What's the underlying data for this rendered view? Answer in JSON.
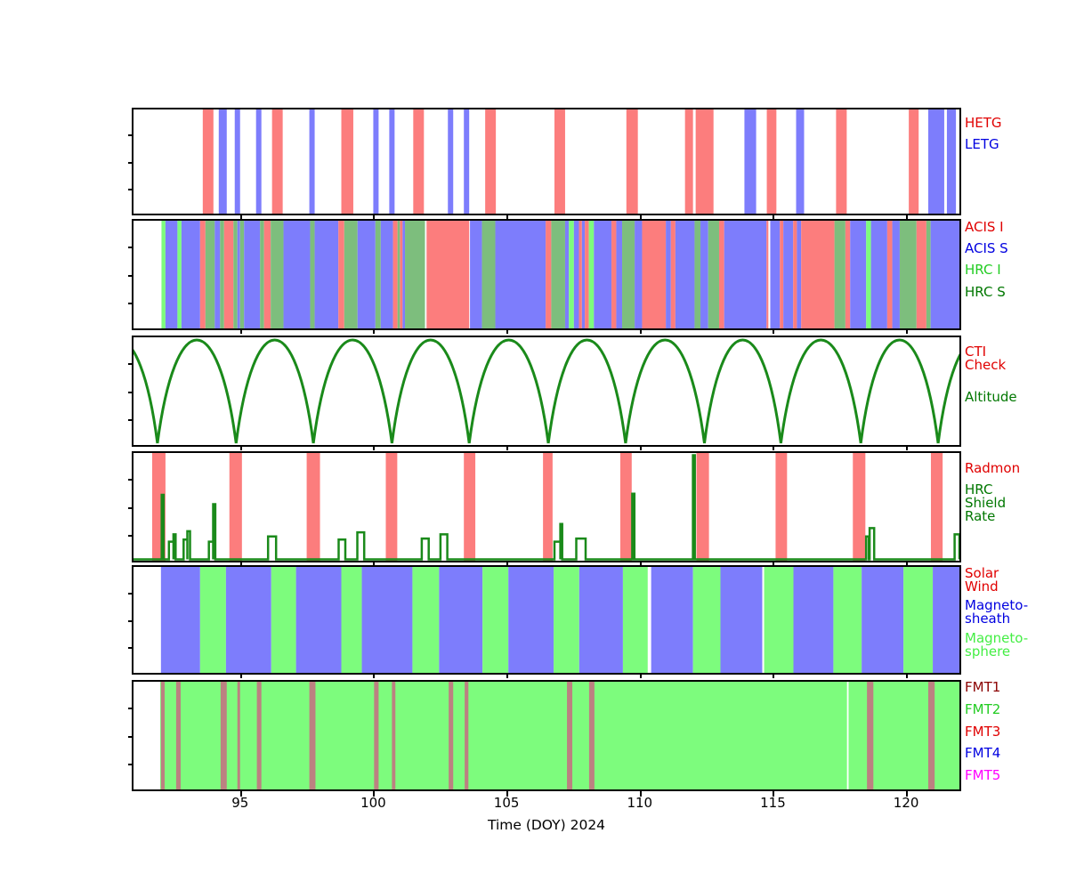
{
  "chart_data": {
    "type": "area",
    "title": "",
    "xlabel": "Time (DOY) 2024",
    "axis": {
      "title": "Time (DOY) 2024",
      "xmin": 91.0,
      "xmax": 122.0,
      "xtick_values": [
        95,
        100,
        105,
        110,
        115,
        120
      ],
      "xtick_labels": [
        "95",
        "100",
        "105",
        "110",
        "115",
        "120"
      ]
    },
    "palette": {
      "salmon": "#fc7d7d",
      "blue": "#7d7dfc",
      "lime": "#7dfc7d",
      "mutedgreen": "#7dbe7d",
      "curvegreen": "#1a8a1a",
      "rosy": "#bc8181",
      "white": "#ffffff"
    },
    "panels": [
      {
        "name": "gratings",
        "type": "intervals",
        "series": [
          {
            "label": "HETG",
            "color": "#e00000"
          },
          {
            "label": "LETG",
            "color": "#0000e0"
          }
        ],
        "segments": [
          [
            93.6,
            94.0,
            "salmon"
          ],
          [
            94.2,
            94.5,
            "blue"
          ],
          [
            94.8,
            95.0,
            "blue"
          ],
          [
            95.6,
            95.8,
            "blue"
          ],
          [
            96.2,
            96.6,
            "salmon"
          ],
          [
            97.6,
            97.8,
            "blue"
          ],
          [
            98.8,
            99.25,
            "salmon"
          ],
          [
            100.0,
            100.2,
            "blue"
          ],
          [
            100.6,
            100.8,
            "blue"
          ],
          [
            101.5,
            101.9,
            "salmon"
          ],
          [
            102.8,
            103.0,
            "blue"
          ],
          [
            103.4,
            103.6,
            "blue"
          ],
          [
            104.2,
            104.6,
            "salmon"
          ],
          [
            106.8,
            107.2,
            "salmon"
          ],
          [
            109.5,
            109.93,
            "salmon"
          ],
          [
            111.7,
            112.0,
            "salmon"
          ],
          [
            112.1,
            112.77,
            "salmon"
          ],
          [
            113.93,
            114.37,
            "blue"
          ],
          [
            114.77,
            115.13,
            "salmon"
          ],
          [
            115.87,
            116.17,
            "blue"
          ],
          [
            117.37,
            117.77,
            "salmon"
          ],
          [
            120.1,
            120.47,
            "salmon"
          ],
          [
            120.83,
            121.43,
            "blue"
          ],
          [
            121.53,
            121.87,
            "blue"
          ]
        ]
      },
      {
        "name": "detectors",
        "type": "intervals",
        "series": [
          {
            "label": "ACIS I",
            "color": "#e00000"
          },
          {
            "label": "ACIS S",
            "color": "#0000e0"
          },
          {
            "label": "HRC I",
            "color": "#22cc22"
          },
          {
            "label": "HRC S",
            "color": "#007700"
          }
        ],
        "segments": [
          [
            92.05,
            92.2,
            "lime"
          ],
          [
            92.2,
            92.65,
            "blue"
          ],
          [
            92.65,
            92.8,
            "lime"
          ],
          [
            92.8,
            93.5,
            "blue"
          ],
          [
            93.5,
            93.7,
            "salmon"
          ],
          [
            93.7,
            94.05,
            "mutedgreen"
          ],
          [
            94.05,
            94.25,
            "blue"
          ],
          [
            94.25,
            94.4,
            "mutedgreen"
          ],
          [
            94.4,
            94.75,
            "salmon"
          ],
          [
            94.75,
            94.9,
            "mutedgreen"
          ],
          [
            94.9,
            95.0,
            "blue"
          ],
          [
            95.0,
            95.15,
            "mutedgreen"
          ],
          [
            95.15,
            95.75,
            "blue"
          ],
          [
            95.75,
            95.9,
            "mutedgreen"
          ],
          [
            95.9,
            96.15,
            "salmon"
          ],
          [
            96.15,
            96.63,
            "mutedgreen"
          ],
          [
            96.63,
            97.63,
            "blue"
          ],
          [
            97.63,
            97.8,
            "mutedgreen"
          ],
          [
            97.8,
            98.69,
            "blue"
          ],
          [
            98.69,
            98.91,
            "salmon"
          ],
          [
            98.91,
            99.41,
            "mutedgreen"
          ],
          [
            99.41,
            100.08,
            "blue"
          ],
          [
            100.08,
            100.28,
            "mutedgreen"
          ],
          [
            100.28,
            100.74,
            "blue"
          ],
          [
            100.74,
            100.91,
            "salmon"
          ],
          [
            100.91,
            101.0,
            "mutedgreen"
          ],
          [
            101.0,
            101.1,
            "salmon"
          ],
          [
            101.1,
            101.19,
            "blue"
          ],
          [
            101.19,
            101.94,
            "mutedgreen"
          ],
          [
            102.0,
            103.6,
            "salmon"
          ],
          [
            103.63,
            104.08,
            "blue"
          ],
          [
            104.08,
            104.58,
            "mutedgreen"
          ],
          [
            104.58,
            106.47,
            "blue"
          ],
          [
            106.47,
            106.68,
            "salmon"
          ],
          [
            106.68,
            107.2,
            "mutedgreen"
          ],
          [
            107.2,
            107.34,
            "blue"
          ],
          [
            107.34,
            107.53,
            "lime"
          ],
          [
            107.53,
            107.72,
            "blue"
          ],
          [
            107.72,
            107.83,
            "salmon"
          ],
          [
            107.83,
            107.94,
            "blue"
          ],
          [
            107.94,
            108.09,
            "salmon"
          ],
          [
            108.09,
            108.28,
            "lime"
          ],
          [
            108.28,
            108.94,
            "blue"
          ],
          [
            108.94,
            109.12,
            "salmon"
          ],
          [
            109.12,
            109.34,
            "blue"
          ],
          [
            109.34,
            109.81,
            "mutedgreen"
          ],
          [
            109.81,
            110.09,
            "blue"
          ],
          [
            110.09,
            110.98,
            "salmon"
          ],
          [
            110.98,
            111.17,
            "blue"
          ],
          [
            111.17,
            111.34,
            "salmon"
          ],
          [
            111.34,
            112.06,
            "blue"
          ],
          [
            112.06,
            112.28,
            "mutedgreen"
          ],
          [
            112.28,
            112.57,
            "blue"
          ],
          [
            112.57,
            112.98,
            "mutedgreen"
          ],
          [
            112.98,
            113.17,
            "salmon"
          ],
          [
            113.17,
            114.76,
            "blue"
          ],
          [
            114.76,
            114.83,
            "salmon"
          ],
          [
            114.9,
            115.26,
            "blue"
          ],
          [
            115.26,
            115.39,
            "salmon"
          ],
          [
            115.39,
            115.76,
            "blue"
          ],
          [
            115.76,
            115.9,
            "salmon"
          ],
          [
            115.9,
            116.06,
            "blue"
          ],
          [
            116.06,
            117.31,
            "salmon"
          ],
          [
            117.31,
            117.72,
            "mutedgreen"
          ],
          [
            117.72,
            117.9,
            "salmon"
          ],
          [
            117.9,
            118.5,
            "blue"
          ],
          [
            118.5,
            118.68,
            "lime"
          ],
          [
            118.68,
            119.29,
            "blue"
          ],
          [
            119.29,
            119.48,
            "salmon"
          ],
          [
            119.48,
            119.76,
            "blue"
          ],
          [
            119.76,
            120.39,
            "mutedgreen"
          ],
          [
            120.39,
            120.76,
            "salmon"
          ],
          [
            120.76,
            120.92,
            "mutedgreen"
          ],
          [
            120.92,
            122.0,
            "blue"
          ]
        ]
      },
      {
        "name": "altitude",
        "type": "curve",
        "series": [
          {
            "label": "CTI\nCheck",
            "color": "#e00000"
          },
          {
            "label": "Altitude",
            "color": "#007700"
          }
        ],
        "perigees": [
          89.0,
          91.9,
          94.85,
          97.75,
          100.7,
          103.6,
          106.57,
          109.47,
          112.43,
          115.3,
          118.3,
          121.2,
          124.1
        ],
        "color": "curvegreen"
      },
      {
        "name": "radmon-shield",
        "type": "radmon",
        "series": [
          {
            "label": "Radmon",
            "color": "#e00000"
          },
          {
            "label": "HRC\nShield\nRate",
            "color": "#007700"
          }
        ],
        "radmon_disable": [
          [
            91.7,
            92.2
          ],
          [
            94.6,
            95.07
          ],
          [
            97.5,
            98.0
          ],
          [
            100.47,
            100.9
          ],
          [
            103.4,
            103.83
          ],
          [
            106.37,
            106.73
          ],
          [
            109.27,
            109.7
          ],
          [
            112.13,
            112.6
          ],
          [
            115.1,
            115.53
          ],
          [
            118.0,
            118.47
          ],
          [
            120.93,
            121.37
          ]
        ],
        "shield_pulses": [
          [
            92.06,
            92.13,
            0.62
          ],
          [
            92.33,
            92.5,
            0.17
          ],
          [
            92.5,
            92.58,
            0.24
          ],
          [
            92.88,
            93.02,
            0.19
          ],
          [
            93.02,
            93.12,
            0.27
          ],
          [
            93.83,
            93.99,
            0.17
          ],
          [
            93.99,
            94.07,
            0.53
          ],
          [
            96.05,
            96.35,
            0.22
          ],
          [
            98.7,
            98.95,
            0.19
          ],
          [
            99.4,
            99.66,
            0.26
          ],
          [
            101.82,
            102.08,
            0.2
          ],
          [
            102.52,
            102.78,
            0.24
          ],
          [
            106.8,
            107.02,
            0.17
          ],
          [
            107.02,
            107.09,
            0.34
          ],
          [
            107.62,
            107.97,
            0.2
          ],
          [
            109.72,
            109.8,
            0.63
          ],
          [
            112.0,
            112.07,
            1.0
          ],
          [
            118.5,
            118.6,
            0.22
          ],
          [
            118.63,
            118.8,
            0.3
          ],
          [
            121.82,
            122.0,
            0.24
          ]
        ],
        "bar_color": "salmon",
        "line_color": "curvegreen"
      },
      {
        "name": "solar-wind-region",
        "type": "intervals",
        "series": [
          {
            "label": "Solar\nWind",
            "color": "#e00000"
          },
          {
            "label": "Magneto-\nsheath",
            "color": "#0000e0"
          },
          {
            "label": "Magneto-\nsphere",
            "color": "#44ee44"
          }
        ],
        "segments": [
          [
            92.03,
            93.5,
            "blue"
          ],
          [
            93.5,
            94.47,
            "lime"
          ],
          [
            94.47,
            96.17,
            "blue"
          ],
          [
            96.17,
            97.1,
            "lime"
          ],
          [
            97.1,
            98.8,
            "blue"
          ],
          [
            98.8,
            99.57,
            "lime"
          ],
          [
            99.57,
            101.47,
            "blue"
          ],
          [
            101.47,
            102.47,
            "lime"
          ],
          [
            102.47,
            104.1,
            "blue"
          ],
          [
            104.1,
            105.07,
            "lime"
          ],
          [
            105.07,
            106.77,
            "blue"
          ],
          [
            106.77,
            107.73,
            "lime"
          ],
          [
            107.73,
            109.37,
            "blue"
          ],
          [
            109.37,
            110.3,
            "lime"
          ],
          [
            110.43,
            112.0,
            "blue"
          ],
          [
            112.0,
            113.03,
            "lime"
          ],
          [
            113.03,
            114.6,
            "blue"
          ],
          [
            114.67,
            115.77,
            "lime"
          ],
          [
            115.77,
            117.27,
            "blue"
          ],
          [
            117.27,
            118.33,
            "lime"
          ],
          [
            118.33,
            119.9,
            "blue"
          ],
          [
            119.9,
            121.0,
            "lime"
          ],
          [
            121.0,
            122.0,
            "blue"
          ]
        ]
      },
      {
        "name": "telemetry-format",
        "type": "intervals",
        "series": [
          {
            "label": "FMT1",
            "color": "#8b0000"
          },
          {
            "label": "FMT2",
            "color": "#22cc22"
          },
          {
            "label": "FMT3",
            "color": "#e00000"
          },
          {
            "label": "FMT4",
            "color": "#0000e0"
          },
          {
            "label": "FMT5",
            "color": "#ff00ff"
          }
        ],
        "segments": [
          [
            92.0,
            117.78,
            "lime"
          ],
          [
            117.84,
            122.0,
            "lime"
          ],
          [
            92.03,
            92.17,
            "rosy"
          ],
          [
            92.6,
            92.77,
            "rosy"
          ],
          [
            94.27,
            94.5,
            "rosy"
          ],
          [
            94.9,
            95.0,
            "rosy"
          ],
          [
            95.63,
            95.8,
            "rosy"
          ],
          [
            97.6,
            97.83,
            "rosy"
          ],
          [
            100.03,
            100.2,
            "rosy"
          ],
          [
            100.7,
            100.83,
            "rosy"
          ],
          [
            102.83,
            103.0,
            "rosy"
          ],
          [
            103.43,
            103.57,
            "rosy"
          ],
          [
            107.27,
            107.47,
            "rosy"
          ],
          [
            108.1,
            108.3,
            "rosy"
          ],
          [
            118.53,
            118.77,
            "rosy"
          ],
          [
            120.83,
            121.07,
            "rosy"
          ]
        ]
      }
    ]
  },
  "legend": {
    "hetg": {
      "label": "HETG",
      "color": "#e00000"
    },
    "letg": {
      "label": "LETG",
      "color": "#0000e0"
    },
    "acis_i": {
      "label": "ACIS I",
      "color": "#e00000"
    },
    "acis_s": {
      "label": "ACIS S",
      "color": "#0000e0"
    },
    "hrc_i": {
      "label": "HRC I",
      "color": "#22cc22"
    },
    "hrc_s": {
      "label": "HRC S",
      "color": "#007700"
    },
    "cti_check": {
      "label": "CTI\nCheck",
      "color": "#e00000"
    },
    "altitude": {
      "label": "Altitude",
      "color": "#007700"
    },
    "radmon": {
      "label": "Radmon",
      "color": "#e00000"
    },
    "hrc_shield": {
      "label": "HRC\nShield\nRate",
      "color": "#007700"
    },
    "solar_wind": {
      "label": "Solar\nWind",
      "color": "#e00000"
    },
    "sheath": {
      "label": "Magneto-\nsheath",
      "color": "#0000e0"
    },
    "sphere": {
      "label": "Magneto-\nsphere",
      "color": "#44ee44"
    },
    "fmt1": {
      "label": "FMT1",
      "color": "#8b0000"
    },
    "fmt2": {
      "label": "FMT2",
      "color": "#22cc22"
    },
    "fmt3": {
      "label": "FMT3",
      "color": "#e00000"
    },
    "fmt4": {
      "label": "FMT4",
      "color": "#0000e0"
    },
    "fmt5": {
      "label": "FMT5",
      "color": "#ff00ff"
    }
  }
}
